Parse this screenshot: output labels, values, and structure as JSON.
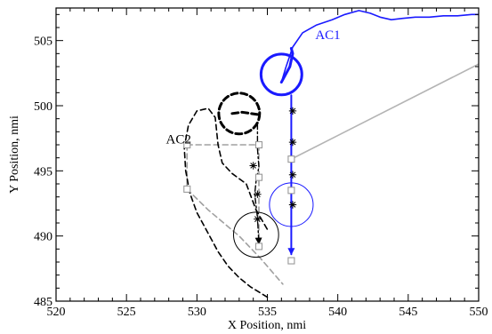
{
  "chart_data": {
    "type": "line",
    "title": "",
    "xlabel": "X Position, nmi",
    "ylabel": "Y Position, nmi",
    "xlim": [
      520,
      550
    ],
    "ylim": [
      485,
      507.5
    ],
    "grid": false,
    "x_ticks": [
      520,
      525,
      530,
      535,
      540,
      545,
      550
    ],
    "y_ticks": [
      485,
      490,
      495,
      500,
      505
    ],
    "x_tick_labels": [
      "520",
      "525",
      "530",
      "535",
      "540",
      "545",
      "550"
    ],
    "y_tick_labels": [
      "485",
      "490",
      "495",
      "500",
      "505"
    ],
    "annotations": [
      {
        "id": "ac1",
        "text": "AC1",
        "x": 538.4,
        "y": 505.1,
        "color": "#1a1aff"
      },
      {
        "id": "ac2",
        "text": "AC2",
        "x": 527.8,
        "y": 497.1,
        "color": "#000000"
      }
    ],
    "series": [
      {
        "id": "ac1-track",
        "color": "#1a1aff",
        "style": "solid",
        "x": [
          536.0,
          536.3,
          536.8,
          537.5,
          538.5,
          539.6,
          540.5,
          541.5,
          542.3,
          543.0,
          543.8,
          544.6,
          545.5,
          546.5,
          547.5,
          548.5,
          549.5,
          550.0
        ],
        "y": [
          501.8,
          502.9,
          504.5,
          505.6,
          506.2,
          506.6,
          507.0,
          507.3,
          507.1,
          506.8,
          506.6,
          506.7,
          506.8,
          506.8,
          506.9,
          506.9,
          507.0,
          507.0
        ]
      },
      {
        "id": "ac1-hook",
        "color": "#1a1aff",
        "style": "solid-thick",
        "x": [
          536.0,
          536.6,
          536.8,
          536.7
        ],
        "y": [
          501.8,
          503.0,
          504.0,
          504.4
        ]
      },
      {
        "id": "ac1-descent",
        "color": "#1a1aff",
        "style": "solid-arrow",
        "x": [
          536.7,
          536.7
        ],
        "y": [
          500.8,
          488.6
        ]
      },
      {
        "id": "ac2-track",
        "color": "#000000",
        "style": "dashed",
        "x": [
          535.0,
          534.4,
          533.8,
          533.0,
          532.2,
          531.5,
          530.8,
          530.0,
          529.5,
          529.2,
          529.1,
          529.4,
          530.0,
          530.8,
          531.3,
          531.5,
          531.8,
          532.5,
          533.5,
          534.2,
          535.0
        ],
        "y": [
          485.3,
          485.7,
          486.1,
          486.8,
          487.7,
          488.8,
          490.2,
          491.8,
          493.3,
          495.0,
          496.8,
          498.5,
          499.6,
          499.8,
          499.1,
          497.0,
          495.6,
          494.8,
          494.0,
          492.0,
          490.5
        ]
      },
      {
        "id": "ac2-start",
        "color": "#000000",
        "style": "dashed-thick",
        "x": [
          532.5,
          533.2,
          534.5
        ],
        "y": [
          499.4,
          499.5,
          499.3
        ]
      },
      {
        "id": "ac2-descent",
        "color": "#000000",
        "style": "dashdot-arrow",
        "x": [
          534.3,
          534.3,
          534.4,
          534.2,
          534.1,
          534.3,
          534.4
        ],
        "y": [
          498.6,
          496.7,
          495.3,
          494.2,
          493.2,
          491.4,
          489.4
        ]
      },
      {
        "id": "gray-diagonal",
        "color": "#b4b4b4",
        "style": "solid",
        "x": [
          536.7,
          550.0
        ],
        "y": [
          495.9,
          503.2
        ]
      },
      {
        "id": "gray-dashed-upper",
        "color": "#a0a0a0",
        "style": "dashed",
        "x": [
          529.3,
          534.4
        ],
        "y": [
          497.0,
          497.0
        ]
      },
      {
        "id": "gray-dashed-left",
        "color": "#a0a0a0",
        "style": "dashed",
        "x": [
          529.3,
          529.3
        ],
        "y": [
          497.0,
          493.6
        ]
      },
      {
        "id": "gray-dashed-lower",
        "color": "#a0a0a0",
        "style": "dashed",
        "x": [
          529.3,
          530.8,
          533.0,
          534.5,
          536.1
        ],
        "y": [
          493.6,
          492.0,
          490.0,
          488.3,
          486.3
        ]
      },
      {
        "id": "gray-dashed-vertical",
        "color": "#a0a0a0",
        "style": "dashed",
        "x": [
          534.4,
          534.4
        ],
        "y": [
          497.0,
          489.2
        ]
      }
    ],
    "circles": [
      {
        "id": "ac1-big",
        "cx": 536.0,
        "cy": 502.4,
        "r": 1.45,
        "color": "#1a1aff",
        "style": "solid-thick"
      },
      {
        "id": "ac1-small",
        "cx": 536.7,
        "cy": 492.4,
        "r": 1.55,
        "color": "#1a1aff",
        "style": "solid-thin"
      },
      {
        "id": "ac2-big",
        "cx": 533.0,
        "cy": 499.4,
        "r": 1.45,
        "color": "#000000",
        "style": "dashed-thick"
      },
      {
        "id": "ac2-small",
        "cx": 534.2,
        "cy": 490.1,
        "r": 1.6,
        "color": "#000000",
        "style": "solid-thin"
      }
    ],
    "square_markers": [
      {
        "x": 529.3,
        "y": 497.0
      },
      {
        "x": 534.4,
        "y": 497.0
      },
      {
        "x": 534.4,
        "y": 494.5
      },
      {
        "x": 529.3,
        "y": 493.6
      },
      {
        "x": 534.4,
        "y": 489.2
      },
      {
        "x": 536.7,
        "y": 495.9
      },
      {
        "x": 536.7,
        "y": 493.5
      },
      {
        "x": 536.7,
        "y": 488.1
      }
    ],
    "star_markers": [
      {
        "x": 536.8,
        "y": 499.6,
        "color": "#000000"
      },
      {
        "x": 536.8,
        "y": 497.2,
        "color": "#000000"
      },
      {
        "x": 536.8,
        "y": 494.7,
        "color": "#000000"
      },
      {
        "x": 536.8,
        "y": 492.4,
        "color": "#000000"
      },
      {
        "x": 534.0,
        "y": 495.4,
        "color": "#000000"
      },
      {
        "x": 534.3,
        "y": 493.2,
        "color": "#000000"
      },
      {
        "x": 534.3,
        "y": 491.3,
        "color": "#000000"
      }
    ]
  }
}
